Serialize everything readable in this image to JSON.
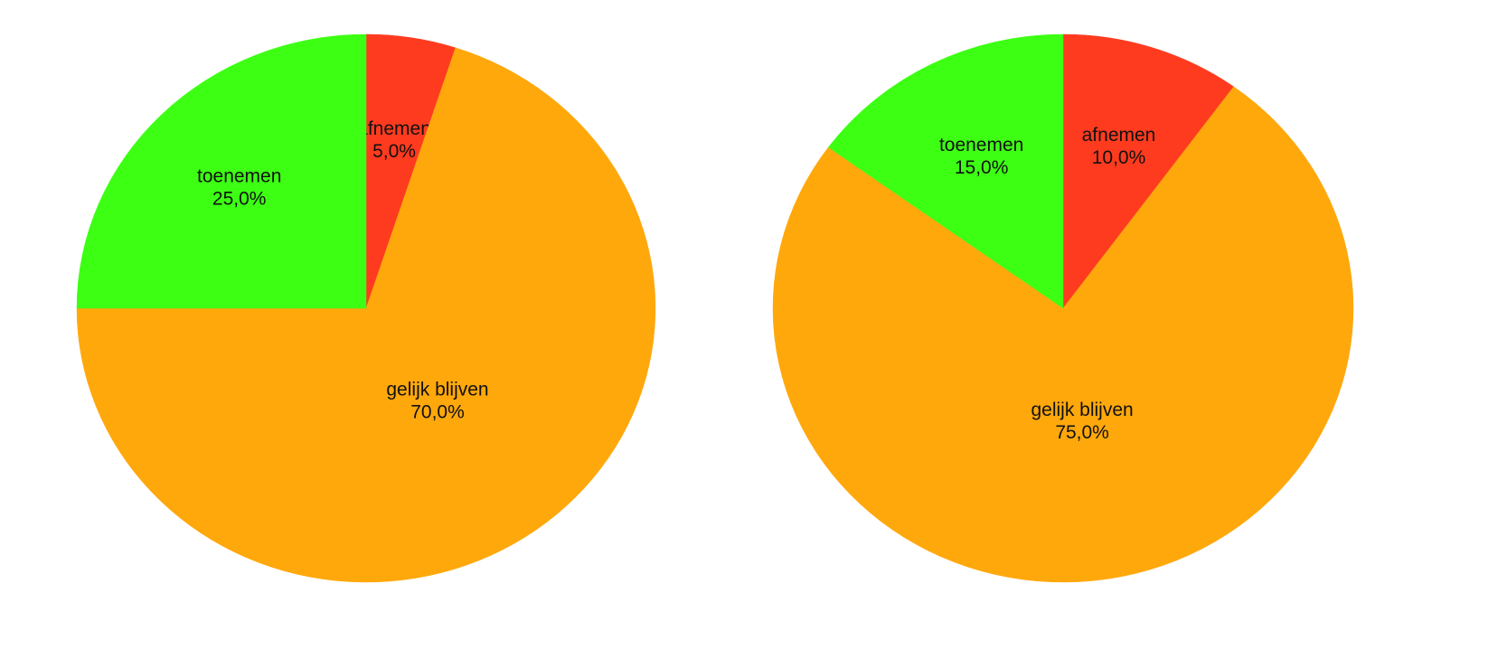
{
  "chart_data": [
    {
      "type": "pie",
      "categories": [
        "afnemen",
        "gelijk blijven",
        "toenemen"
      ],
      "values": [
        5,
        70,
        25
      ],
      "value_labels": [
        "5,0%",
        "70,0%",
        "25,0%"
      ],
      "colors": [
        "#ff3b1f",
        "#ffa80c",
        "#3dff14"
      ]
    },
    {
      "type": "pie",
      "categories": [
        "afnemen",
        "gelijk blijven",
        "toenemen"
      ],
      "values": [
        10,
        75,
        15
      ],
      "value_labels": [
        "10,0%",
        "75,0%",
        "15,0%"
      ],
      "colors": [
        "#ff3b1f",
        "#ffa80c",
        "#3dff14"
      ]
    }
  ]
}
